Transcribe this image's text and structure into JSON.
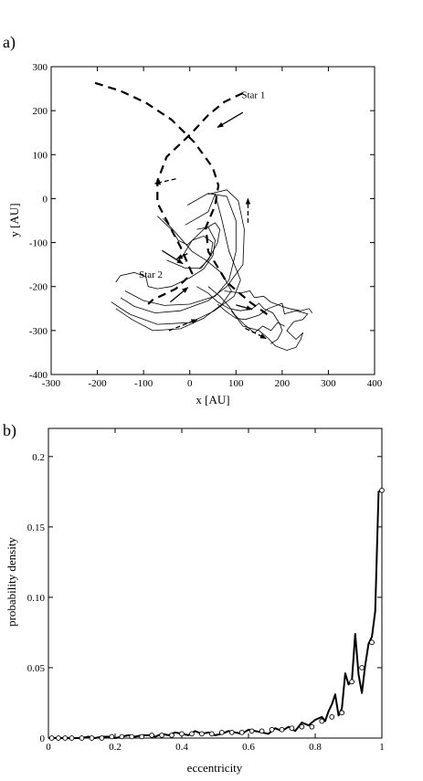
{
  "chart_data": [
    {
      "panel_label": "a)",
      "type": "line",
      "xlabel": "x [AU]",
      "ylabel": "y [AU]",
      "xlim": [
        -300,
        400
      ],
      "ylim": [
        -400,
        300
      ],
      "xticks": [
        -300,
        -200,
        -100,
        0,
        100,
        200,
        300,
        400
      ],
      "yticks": [
        -400,
        -300,
        -200,
        -100,
        0,
        100,
        200,
        300
      ],
      "grid": false,
      "annotations": [
        {
          "text": "Star 1",
          "x": 112,
          "y": 228
        },
        {
          "text": "Star 2",
          "x": -110,
          "y": -180
        }
      ],
      "dashed_series": [
        {
          "points": [
            [
              -205,
              263
            ],
            [
              -150,
              245
            ],
            [
              -95,
              218
            ],
            [
              -40,
              180
            ],
            [
              10,
              128
            ],
            [
              50,
              70
            ],
            [
              62,
              30
            ],
            [
              55,
              -15
            ],
            [
              35,
              -65
            ],
            [
              40,
              -120
            ],
            [
              80,
              -190
            ],
            [
              130,
              -235
            ],
            [
              170,
              -265
            ]
          ]
        },
        {
          "points": [
            [
              115,
              240
            ],
            [
              75,
              220
            ],
            [
              40,
              190
            ],
            [
              5,
              150
            ],
            [
              -50,
              95
            ],
            [
              -70,
              40
            ],
            [
              -70,
              -10
            ],
            [
              -45,
              -60
            ],
            [
              -20,
              -110
            ],
            [
              5,
              -170
            ],
            [
              -30,
              -205
            ],
            [
              -80,
              -230
            ],
            [
              -90,
              -240
            ]
          ]
        }
      ],
      "arrows": [
        {
          "from": [
            115,
            196
          ],
          "to": [
            60,
            162
          ],
          "style": "solid"
        },
        {
          "from": [
            -30,
            45
          ],
          "to": [
            -76,
            34
          ],
          "style": "dashed"
        },
        {
          "from": [
            126,
            -55
          ],
          "to": [
            126,
            0
          ],
          "style": "dashed"
        },
        {
          "from": [
            -42,
            -235
          ],
          "to": [
            -4,
            -202
          ],
          "style": "solid"
        },
        {
          "from": [
            -45,
            -300
          ],
          "to": [
            16,
            -275
          ],
          "style": "dashed"
        },
        {
          "from": [
            120,
            -295
          ],
          "to": [
            165,
            -318
          ],
          "style": "dashed"
        },
        {
          "from": [
            -60,
            -118
          ],
          "to": [
            -15,
            -148
          ],
          "style": "solid"
        },
        {
          "from": [
            100,
            -242
          ],
          "to": [
            135,
            -252
          ],
          "style": "solid"
        },
        {
          "from": [
            -5,
            -125
          ],
          "to": [
            -28,
            -137
          ],
          "style": "solid"
        }
      ],
      "solid_series": [
        {
          "points": [
            [
              -160,
              -250
            ],
            [
              -125,
              -275
            ],
            [
              -80,
              -300
            ],
            [
              -20,
              -296
            ],
            [
              30,
              -272
            ],
            [
              70,
              -240
            ],
            [
              90,
              -210
            ],
            [
              70,
              -170
            ],
            [
              35,
              -140
            ],
            [
              5,
              -120
            ],
            [
              -20,
              -90
            ],
            [
              -58,
              -45
            ]
          ]
        },
        {
          "points": [
            [
              -170,
              -235
            ],
            [
              -130,
              -263
            ],
            [
              -70,
              -286
            ],
            [
              0,
              -282
            ],
            [
              52,
              -256
            ],
            [
              96,
              -222
            ],
            [
              110,
              -185
            ],
            [
              85,
              -120
            ],
            [
              70,
              -50
            ],
            [
              55,
              10
            ],
            [
              40,
              -30
            ],
            [
              -10,
              -60
            ]
          ]
        },
        {
          "points": [
            [
              -150,
              -225
            ],
            [
              -120,
              -245
            ],
            [
              -75,
              -260
            ],
            [
              -20,
              -255
            ],
            [
              40,
              -232
            ],
            [
              80,
              -200
            ],
            [
              115,
              -150
            ],
            [
              118,
              -70
            ],
            [
              105,
              -5
            ],
            [
              80,
              20
            ],
            [
              40,
              10
            ]
          ]
        },
        {
          "points": [
            [
              -140,
              -210
            ],
            [
              -100,
              -232
            ],
            [
              -55,
              -243
            ],
            [
              0,
              -240
            ],
            [
              55,
              -222
            ],
            [
              85,
              -185
            ],
            [
              100,
              -120
            ],
            [
              100,
              -50
            ],
            [
              80,
              5
            ],
            [
              40,
              12
            ],
            [
              -5,
              -15
            ]
          ]
        },
        {
          "points": [
            [
              -160,
              -190
            ],
            [
              -150,
              -175
            ],
            [
              -120,
              -168
            ],
            [
              -95,
              -178
            ],
            [
              -90,
              -200
            ],
            [
              -70,
              -205
            ],
            [
              -40,
              -200
            ],
            [
              0,
              -180
            ],
            [
              30,
              -160
            ],
            [
              50,
              -130
            ],
            [
              55,
              -95
            ],
            [
              40,
              -65
            ],
            [
              15,
              -70
            ]
          ]
        },
        {
          "points": [
            [
              -50,
              -140
            ],
            [
              -10,
              -158
            ],
            [
              25,
              -158
            ],
            [
              45,
              -130
            ],
            [
              50,
              -100
            ],
            [
              30,
              -85
            ],
            [
              5,
              -95
            ],
            [
              -15,
              -130
            ]
          ]
        },
        {
          "points": [
            [
              -70,
              -40
            ],
            [
              -40,
              -70
            ],
            [
              -25,
              -95
            ],
            [
              -5,
              -105
            ],
            [
              10,
              -90
            ],
            [
              30,
              -70
            ],
            [
              55,
              -55
            ],
            [
              65,
              -70
            ],
            [
              60,
              -100
            ],
            [
              40,
              -140
            ],
            [
              20,
              -160
            ]
          ]
        },
        {
          "points": [
            [
              15,
              -200
            ],
            [
              40,
              -215
            ],
            [
              60,
              -235
            ],
            [
              85,
              -250
            ],
            [
              110,
              -255
            ],
            [
              135,
              -250
            ],
            [
              150,
              -238
            ],
            [
              160,
              -250
            ],
            [
              180,
              -260
            ],
            [
              195,
              -285
            ],
            [
              200,
              -300
            ],
            [
              190,
              -320
            ],
            [
              175,
              -330
            ]
          ]
        },
        {
          "points": [
            [
              60,
              -240
            ],
            [
              80,
              -258
            ],
            [
              100,
              -272
            ],
            [
              120,
              -275
            ],
            [
              150,
              -265
            ],
            [
              170,
              -250
            ],
            [
              200,
              -238
            ],
            [
              205,
              -262
            ],
            [
              230,
              -255
            ],
            [
              255,
              -262
            ],
            [
              245,
              -275
            ],
            [
              225,
              -280
            ],
            [
              210,
              -300
            ],
            [
              230,
              -320
            ],
            [
              245,
              -305
            ]
          ]
        },
        {
          "points": [
            [
              75,
              -210
            ],
            [
              110,
              -215
            ],
            [
              130,
              -210
            ],
            [
              140,
              -225
            ],
            [
              160,
              -222
            ],
            [
              175,
              -235
            ],
            [
              200,
              -245
            ],
            [
              215,
              -250
            ],
            [
              240,
              -255
            ],
            [
              258,
              -250
            ],
            [
              265,
              -260
            ]
          ]
        },
        {
          "points": [
            [
              90,
              -255
            ],
            [
              115,
              -290
            ],
            [
              150,
              -300
            ],
            [
              170,
              -318
            ],
            [
              185,
              -335
            ],
            [
              210,
              -345
            ],
            [
              230,
              -338
            ],
            [
              240,
              -320
            ],
            [
              245,
              -305
            ]
          ]
        },
        {
          "points": [
            [
              40,
              -200
            ],
            [
              65,
              -222
            ],
            [
              85,
              -245
            ],
            [
              98,
              -265
            ],
            [
              120,
              -288
            ],
            [
              140,
              -305
            ],
            [
              158,
              -290
            ],
            [
              176,
              -300
            ],
            [
              190,
              -282
            ],
            [
              205,
              -290
            ]
          ]
        }
      ]
    },
    {
      "panel_label": "b)",
      "type": "line",
      "xlabel": "eccentricity",
      "ylabel": "probability density",
      "xlim": [
        0,
        1
      ],
      "ylim": [
        0,
        0.22
      ],
      "xticks": [
        0,
        0.2,
        0.4,
        0.6,
        0.8,
        1
      ],
      "xtick_labels": [
        "0",
        "0.2",
        "0.4",
        "0.6",
        "0.8",
        "1"
      ],
      "yticks": [
        0,
        0.05,
        0.1,
        0.15,
        0.2
      ],
      "ytick_labels": [
        "0",
        "0.05",
        "0.10",
        "0.15",
        "0.2"
      ],
      "grid": false,
      "series": [
        {
          "style": "thick-line",
          "x": [
            0.0,
            0.02,
            0.04,
            0.06,
            0.08,
            0.1,
            0.12,
            0.14,
            0.16,
            0.18,
            0.2,
            0.22,
            0.24,
            0.26,
            0.28,
            0.3,
            0.32,
            0.34,
            0.36,
            0.38,
            0.4,
            0.42,
            0.44,
            0.46,
            0.48,
            0.5,
            0.52,
            0.54,
            0.56,
            0.58,
            0.6,
            0.62,
            0.64,
            0.66,
            0.68,
            0.7,
            0.72,
            0.74,
            0.76,
            0.78,
            0.8,
            0.81,
            0.82,
            0.83,
            0.84,
            0.85,
            0.86,
            0.87,
            0.88,
            0.89,
            0.9,
            0.91,
            0.92,
            0.93,
            0.94,
            0.95,
            0.96,
            0.97,
            0.98,
            0.99,
            1.0
          ],
          "y": [
            0.0,
            0.0,
            0.0,
            0.0,
            0.0,
            0.0,
            0.001,
            0.0,
            0.001,
            0.001,
            0.0,
            0.001,
            0.002,
            0.001,
            0.002,
            0.002,
            0.001,
            0.003,
            0.002,
            0.004,
            0.003,
            0.002,
            0.005,
            0.003,
            0.004,
            0.002,
            0.003,
            0.005,
            0.004,
            0.003,
            0.006,
            0.005,
            0.004,
            0.003,
            0.007,
            0.005,
            0.008,
            0.005,
            0.011,
            0.009,
            0.013,
            0.014,
            0.015,
            0.012,
            0.019,
            0.024,
            0.031,
            0.016,
            0.021,
            0.046,
            0.038,
            0.041,
            0.074,
            0.045,
            0.032,
            0.052,
            0.067,
            0.072,
            0.09,
            0.175,
            0.176
          ]
        },
        {
          "style": "open-circle-markers",
          "x": [
            0.01,
            0.03,
            0.05,
            0.07,
            0.1,
            0.13,
            0.16,
            0.19,
            0.22,
            0.25,
            0.28,
            0.31,
            0.34,
            0.37,
            0.4,
            0.43,
            0.46,
            0.49,
            0.52,
            0.55,
            0.58,
            0.61,
            0.64,
            0.67,
            0.7,
            0.73,
            0.76,
            0.79,
            0.82,
            0.85,
            0.88,
            0.91,
            0.94,
            0.97,
            1.0
          ],
          "y": [
            0.0,
            0.0,
            0.0,
            0.0,
            0.0,
            0.0,
            0.0,
            0.001,
            0.001,
            0.001,
            0.001,
            0.002,
            0.002,
            0.002,
            0.003,
            0.003,
            0.003,
            0.003,
            0.004,
            0.004,
            0.004,
            0.005,
            0.005,
            0.006,
            0.006,
            0.007,
            0.008,
            0.008,
            0.012,
            0.015,
            0.018,
            0.04,
            0.05,
            0.068,
            0.176
          ]
        }
      ]
    }
  ]
}
